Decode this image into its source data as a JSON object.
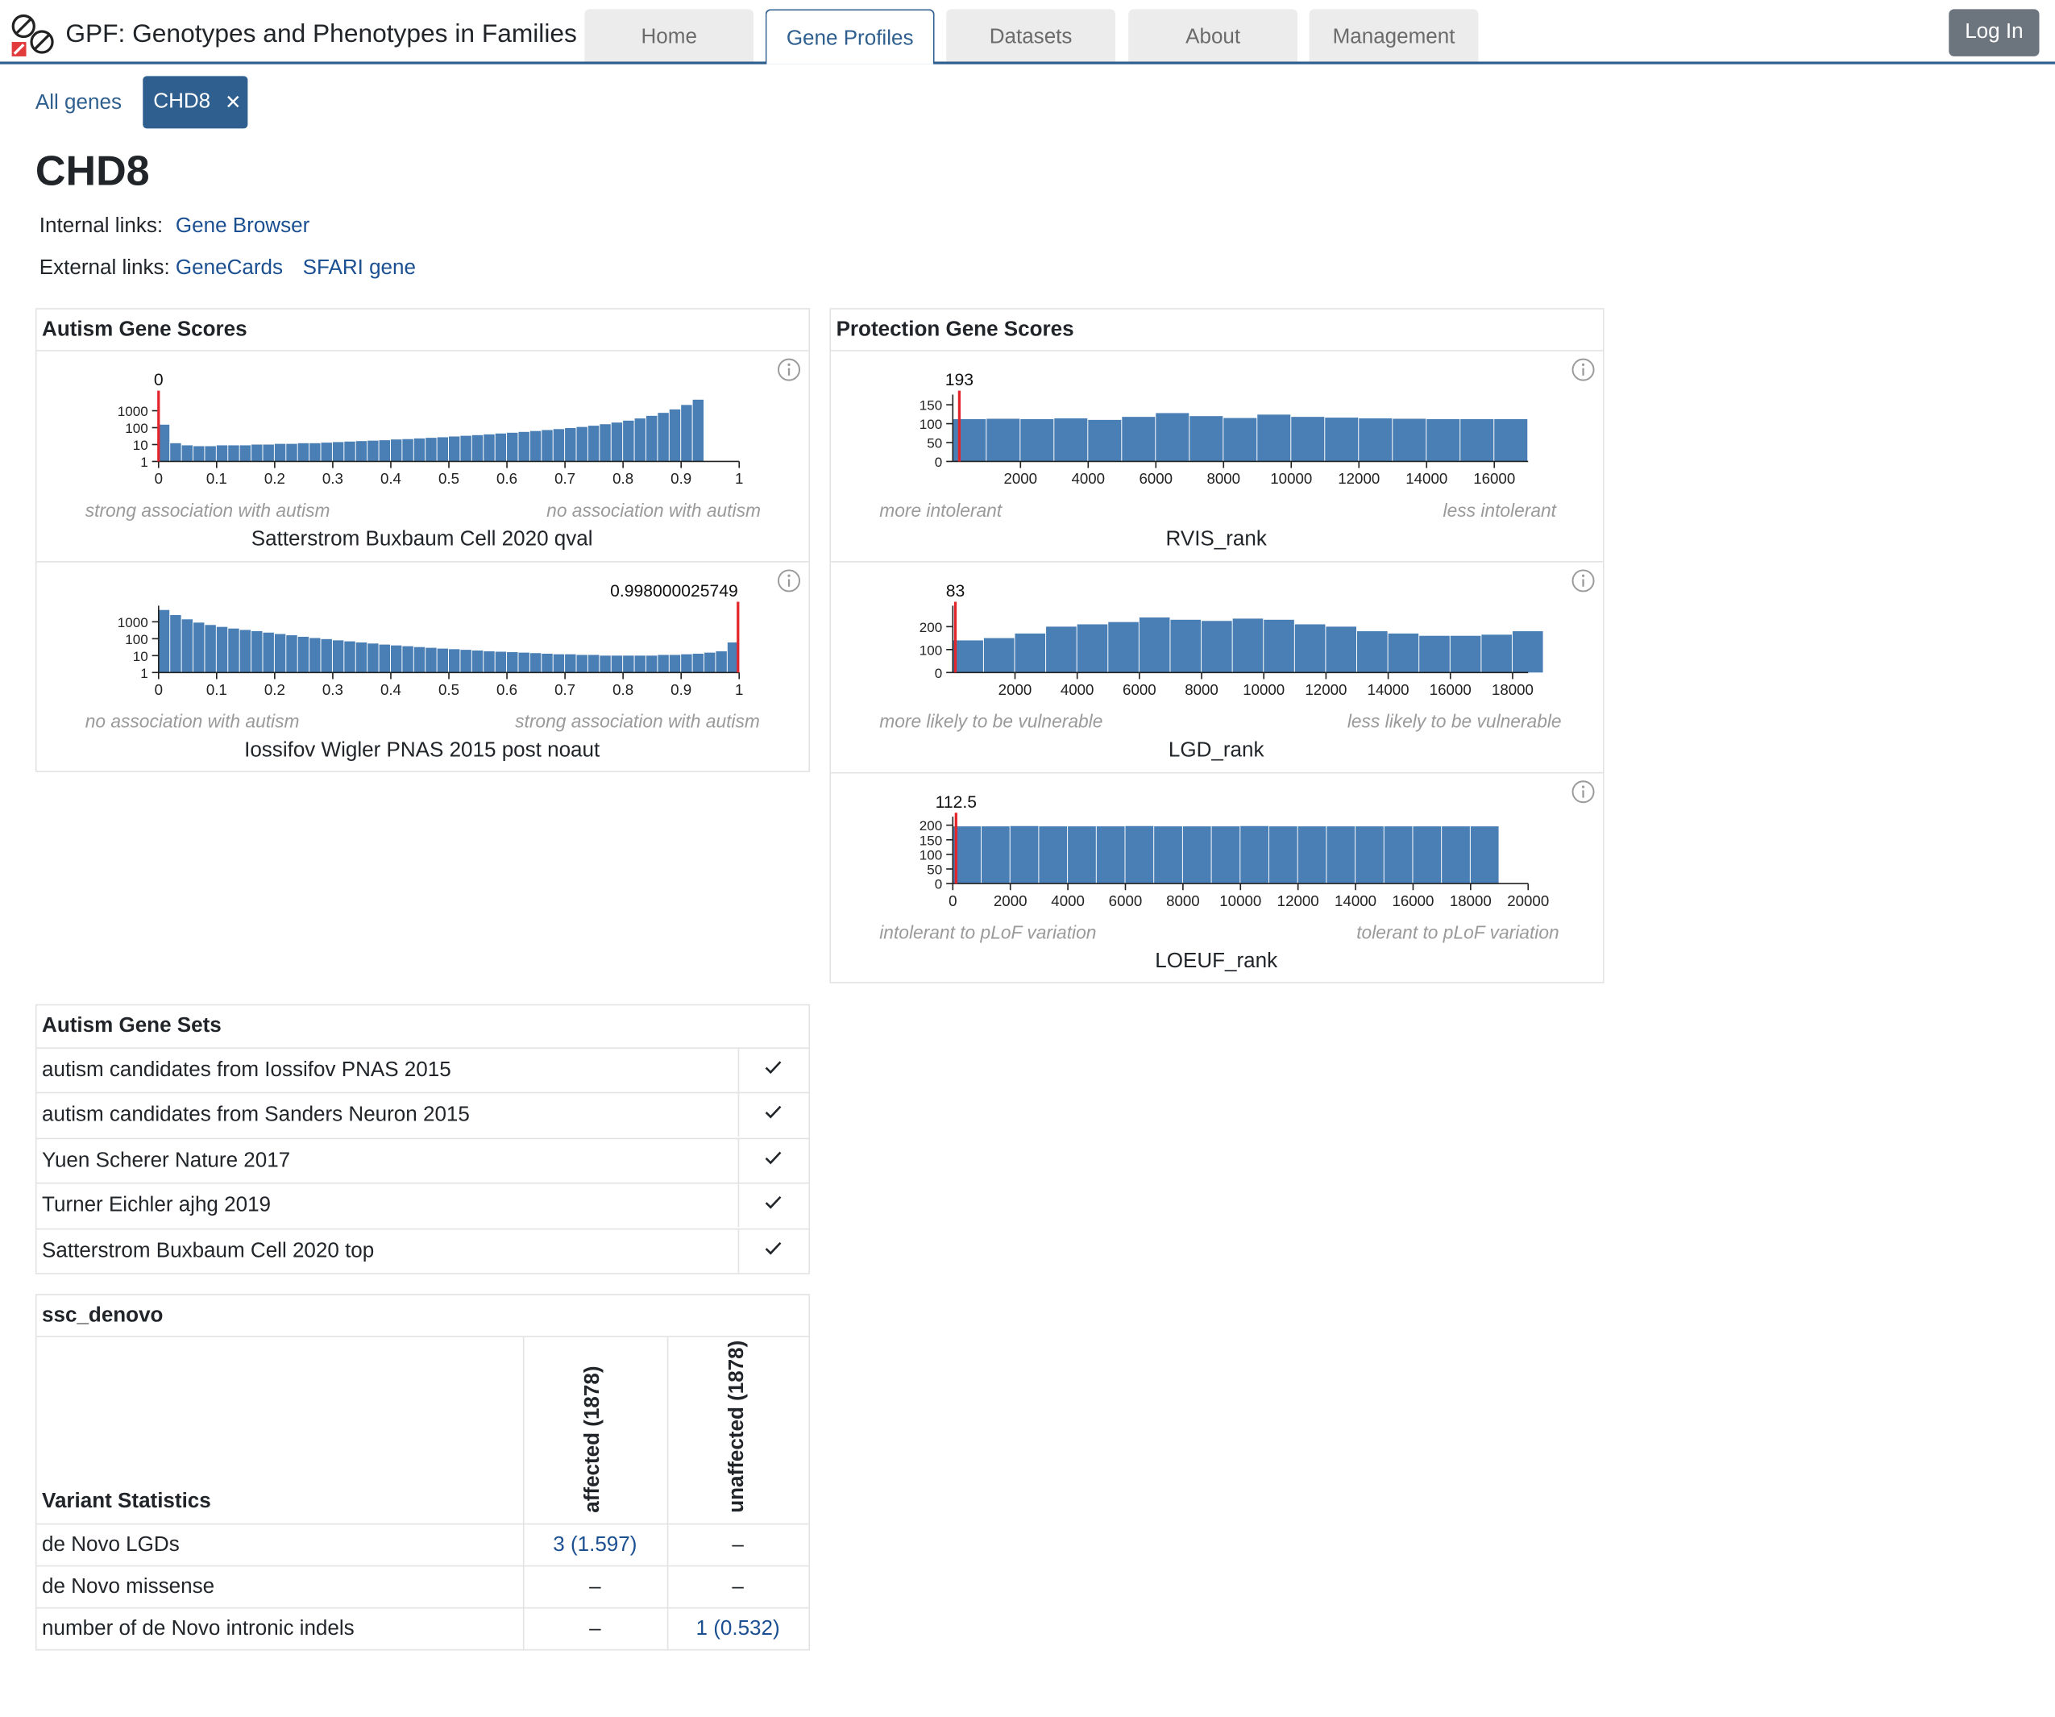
{
  "header": {
    "title": "GPF: Genotypes and Phenotypes in Families",
    "tabs": [
      "Home",
      "Gene Profiles",
      "Datasets",
      "About",
      "Management"
    ],
    "active_tab": "Gene Profiles",
    "login_label": "Log In",
    "accent_color": "#2f5f8f",
    "tab_color": "#ececec"
  },
  "breadcrumb": {
    "all_genes": "All genes",
    "chip": "CHD8",
    "chip_close": "✕"
  },
  "gene": {
    "symbol": "CHD8"
  },
  "links": {
    "internal_label": "Internal links:",
    "internal": [
      "Gene Browser"
    ],
    "external_label": "External links:",
    "external": [
      "GeneCards",
      "SFARI gene"
    ]
  },
  "autism_scores": {
    "title": "Autism Gene Scores",
    "charts": [
      {
        "name": "Satterstrom Buxbaum Cell 2020 qval",
        "marker_label": "0",
        "marker_value": 0,
        "left_hint": "strong association with autism",
        "right_hint": "no association with autism"
      },
      {
        "name": "Iossifov Wigler PNAS 2015 post noaut",
        "marker_label": "0.998000025749",
        "marker_value": 0.998,
        "left_hint": "no association with autism",
        "right_hint": "strong association with autism"
      }
    ]
  },
  "protection_scores": {
    "title": "Protection Gene Scores",
    "charts": [
      {
        "name": "RVIS_rank",
        "marker_label": "193",
        "marker_value": 193,
        "left_hint": "more intolerant",
        "right_hint": "less intolerant"
      },
      {
        "name": "LGD_rank",
        "marker_label": "83",
        "marker_value": 83,
        "left_hint": "more likely to be vulnerable",
        "right_hint": "less likely to be vulnerable"
      },
      {
        "name": "LOEUF_rank",
        "marker_label": "112.5",
        "marker_value": 112.5,
        "left_hint": "intolerant to pLoF variation",
        "right_hint": "tolerant to pLoF variation"
      }
    ]
  },
  "gene_sets": {
    "title": "Autism Gene Sets",
    "items": [
      "autism candidates from Iossifov PNAS 2015",
      "autism candidates from Sanders Neuron 2015",
      "Yuen Scherer Nature 2017",
      "Turner Eichler ajhg 2019",
      "Satterstrom Buxbaum Cell 2020 top"
    ]
  },
  "variants": {
    "study": "ssc_denovo",
    "header": "Variant Statistics",
    "columns": [
      "affected (1878)",
      "unaffected (1878)"
    ],
    "rows": [
      {
        "label": "de Novo LGDs",
        "values": [
          "3 (1.597)",
          "–"
        ]
      },
      {
        "label": "de Novo missense",
        "values": [
          "–",
          "–"
        ]
      },
      {
        "label": "number of de Novo intronic indels",
        "values": [
          "–",
          "1 (0.532)"
        ]
      }
    ]
  },
  "chart_data": [
    {
      "type": "bar",
      "title": "Satterstrom Buxbaum Cell 2020 qval",
      "scale": "log",
      "x": [
        0,
        0.02,
        0.04,
        0.06,
        0.08,
        0.1,
        0.12,
        0.14,
        0.16,
        0.18,
        0.2,
        0.22,
        0.24,
        0.26,
        0.28,
        0.3,
        0.32,
        0.34,
        0.36,
        0.38,
        0.4,
        0.42,
        0.44,
        0.46,
        0.48,
        0.5,
        0.52,
        0.54,
        0.56,
        0.58,
        0.6,
        0.62,
        0.64,
        0.66,
        0.68,
        0.7,
        0.72,
        0.74,
        0.76,
        0.78,
        0.8,
        0.82,
        0.84,
        0.86,
        0.88,
        0.9,
        0.92
      ],
      "values": [
        150,
        12,
        9,
        8,
        8,
        9,
        9,
        9,
        10,
        10,
        11,
        11,
        12,
        12,
        13,
        14,
        15,
        16,
        17,
        18,
        20,
        21,
        23,
        25,
        27,
        30,
        33,
        36,
        40,
        45,
        50,
        56,
        63,
        72,
        82,
        95,
        110,
        130,
        160,
        200,
        260,
        350,
        500,
        750,
        1200,
        2200,
        4500
      ],
      "xlim": [
        0,
        1
      ],
      "xticks": [
        "0",
        "0.1",
        "0.2",
        "0.3",
        "0.4",
        "0.5",
        "0.6",
        "0.7",
        "0.8",
        "0.9",
        "1"
      ],
      "yticks": [
        "1",
        "10",
        "100",
        "1000"
      ],
      "marker": 0
    },
    {
      "type": "bar",
      "title": "Iossifov Wigler PNAS 2015 post noaut",
      "scale": "log",
      "x": [
        0,
        0.02,
        0.04,
        0.06,
        0.08,
        0.1,
        0.12,
        0.14,
        0.16,
        0.18,
        0.2,
        0.22,
        0.24,
        0.26,
        0.28,
        0.3,
        0.32,
        0.34,
        0.36,
        0.38,
        0.4,
        0.42,
        0.44,
        0.46,
        0.48,
        0.5,
        0.52,
        0.54,
        0.56,
        0.58,
        0.6,
        0.62,
        0.64,
        0.66,
        0.68,
        0.7,
        0.72,
        0.74,
        0.76,
        0.78,
        0.8,
        0.82,
        0.84,
        0.86,
        0.88,
        0.9,
        0.92,
        0.94,
        0.96,
        0.98
      ],
      "values": [
        5000,
        2500,
        1400,
        900,
        650,
        500,
        400,
        330,
        280,
        230,
        190,
        160,
        130,
        110,
        95,
        80,
        70,
        60,
        52,
        45,
        40,
        36,
        32,
        29,
        26,
        24,
        22,
        20,
        18,
        17,
        16,
        15,
        14,
        13,
        12,
        12,
        11,
        11,
        10,
        10,
        10,
        10,
        10,
        11,
        11,
        12,
        13,
        15,
        18,
        60
      ],
      "xlim": [
        0,
        1
      ],
      "xticks": [
        "0",
        "0.1",
        "0.2",
        "0.3",
        "0.4",
        "0.5",
        "0.6",
        "0.7",
        "0.8",
        "0.9",
        "1"
      ],
      "yticks": [
        "1",
        "10",
        "100",
        "1000"
      ],
      "marker": 0.998
    },
    {
      "type": "bar",
      "title": "RVIS_rank",
      "scale": "linear",
      "xlim": [
        0,
        17000
      ],
      "ylim": [
        0,
        170
      ],
      "xticks": [
        2000,
        4000,
        6000,
        8000,
        10000,
        12000,
        14000,
        16000
      ],
      "yticks": [
        0,
        50,
        100,
        150
      ],
      "x": [
        0,
        1000,
        2000,
        3000,
        4000,
        5000,
        6000,
        7000,
        8000,
        9000,
        10000,
        11000,
        12000,
        13000,
        14000,
        15000,
        16000
      ],
      "values": [
        112,
        113,
        112,
        114,
        110,
        118,
        128,
        120,
        115,
        124,
        118,
        116,
        114,
        113,
        112,
        112,
        112
      ],
      "marker": 193
    },
    {
      "type": "bar",
      "title": "LGD_rank",
      "scale": "linear",
      "xlim": [
        0,
        18500
      ],
      "ylim": [
        0,
        280
      ],
      "xticks": [
        2000,
        4000,
        6000,
        8000,
        10000,
        12000,
        14000,
        16000,
        18000
      ],
      "yticks": [
        0,
        100,
        200
      ],
      "x": [
        0,
        1000,
        2000,
        3000,
        4000,
        5000,
        6000,
        7000,
        8000,
        9000,
        10000,
        11000,
        12000,
        13000,
        14000,
        15000,
        16000,
        17000,
        18000
      ],
      "values": [
        140,
        150,
        170,
        200,
        210,
        220,
        240,
        230,
        225,
        235,
        230,
        210,
        200,
        180,
        170,
        160,
        160,
        165,
        180
      ],
      "marker": 83
    },
    {
      "type": "bar",
      "title": "LOEUF_rank",
      "scale": "linear",
      "xlim": [
        0,
        20000
      ],
      "ylim": [
        0,
        220
      ],
      "xticks": [
        0,
        2000,
        4000,
        6000,
        8000,
        10000,
        12000,
        14000,
        16000,
        18000,
        20000
      ],
      "yticks": [
        0,
        50,
        100,
        150,
        200
      ],
      "x": [
        0,
        1000,
        2000,
        3000,
        4000,
        5000,
        6000,
        7000,
        8000,
        9000,
        10000,
        11000,
        12000,
        13000,
        14000,
        15000,
        16000,
        17000,
        18000
      ],
      "values": [
        196,
        196,
        197,
        196,
        196,
        196,
        197,
        196,
        196,
        196,
        197,
        196,
        196,
        196,
        196,
        196,
        196,
        196,
        196
      ],
      "marker": 112.5
    }
  ]
}
